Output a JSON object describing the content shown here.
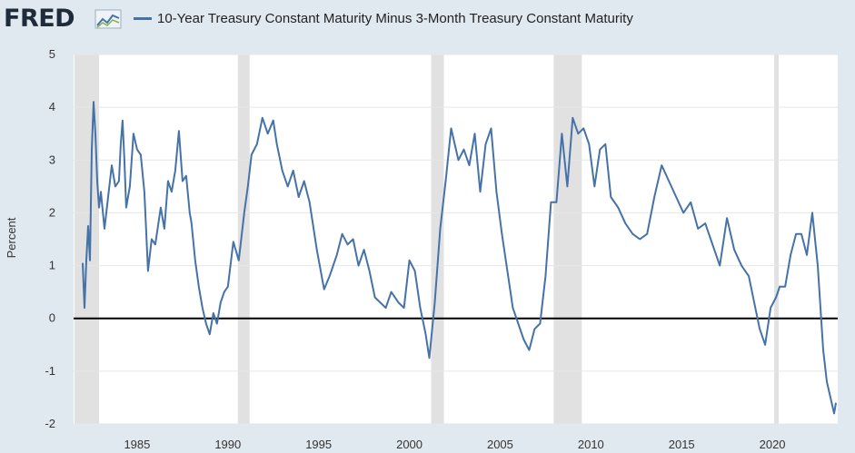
{
  "logo": {
    "text": "FRED"
  },
  "colors": {
    "background": "#e1e9f0",
    "plot_bg": "#ffffff",
    "recession": "#e1e1e1",
    "line": "#4572a7",
    "zero_line": "#000000"
  },
  "chart_data": {
    "type": "line",
    "series": [
      {
        "name": "10-Year Treasury Constant Maturity Minus 3-Month Treasury Constant Maturity",
        "x": [
          1982.0,
          1982.1,
          1982.2,
          1982.3,
          1982.4,
          1982.5,
          1982.6,
          1982.7,
          1982.8,
          1982.9,
          1983.0,
          1983.2,
          1983.4,
          1983.6,
          1983.8,
          1984.0,
          1984.1,
          1984.2,
          1984.3,
          1984.4,
          1984.6,
          1984.8,
          1985.0,
          1985.2,
          1985.4,
          1985.6,
          1985.8,
          1986.0,
          1986.3,
          1986.5,
          1986.7,
          1986.9,
          1987.1,
          1987.3,
          1987.5,
          1987.7,
          1987.9,
          1988.0,
          1988.2,
          1988.4,
          1988.6,
          1988.8,
          1989.0,
          1989.2,
          1989.4,
          1989.6,
          1989.8,
          1990.0,
          1990.3,
          1990.6,
          1990.9,
          1991.1,
          1991.3,
          1991.6,
          1991.9,
          1992.2,
          1992.5,
          1992.7,
          1993.0,
          1993.3,
          1993.6,
          1993.9,
          1994.2,
          1994.5,
          1994.9,
          1995.3,
          1995.6,
          1996.0,
          1996.3,
          1996.6,
          1996.9,
          1997.2,
          1997.5,
          1997.8,
          1998.1,
          1998.4,
          1998.7,
          1999.0,
          1999.4,
          1999.7,
          2000.0,
          2000.3,
          2000.6,
          2000.9,
          2001.1,
          2001.4,
          2001.7,
          2002.0,
          2002.3,
          2002.7,
          2003.0,
          2003.3,
          2003.6,
          2003.9,
          2004.2,
          2004.5,
          2004.8,
          2005.1,
          2005.4,
          2005.7,
          2006.0,
          2006.3,
          2006.6,
          2006.9,
          2007.2,
          2007.5,
          2007.8,
          2008.1,
          2008.4,
          2008.7,
          2009.0,
          2009.3,
          2009.6,
          2009.9,
          2010.2,
          2010.5,
          2010.8,
          2011.1,
          2011.5,
          2011.9,
          2012.3,
          2012.7,
          2013.1,
          2013.5,
          2013.9,
          2014.3,
          2014.7,
          2015.1,
          2015.5,
          2015.9,
          2016.3,
          2016.7,
          2017.1,
          2017.5,
          2017.9,
          2018.3,
          2018.7,
          2019.0,
          2019.3,
          2019.6,
          2019.9,
          2020.2,
          2020.4,
          2020.7,
          2021.0,
          2021.3,
          2021.6,
          2021.9,
          2022.2,
          2022.5,
          2022.8,
          2023.0,
          2023.2,
          2023.4,
          2023.5
        ],
        "y": [
          1.05,
          0.2,
          1.1,
          1.75,
          1.1,
          3.2,
          4.1,
          3.5,
          2.6,
          2.1,
          2.4,
          1.7,
          2.3,
          2.9,
          2.5,
          2.6,
          3.3,
          3.75,
          3.0,
          2.1,
          2.5,
          3.5,
          3.2,
          3.1,
          2.4,
          0.9,
          1.5,
          1.4,
          2.1,
          1.7,
          2.6,
          2.4,
          2.8,
          3.55,
          2.6,
          2.7,
          2.0,
          1.8,
          1.1,
          0.6,
          0.2,
          -0.1,
          -0.3,
          0.1,
          -0.1,
          0.3,
          0.5,
          0.6,
          1.45,
          1.1,
          2.0,
          2.5,
          3.1,
          3.3,
          3.8,
          3.5,
          3.75,
          3.3,
          2.8,
          2.5,
          2.8,
          2.3,
          2.6,
          2.2,
          1.3,
          0.55,
          0.8,
          1.2,
          1.6,
          1.4,
          1.5,
          1.0,
          1.3,
          0.9,
          0.4,
          0.3,
          0.2,
          0.5,
          0.3,
          0.2,
          1.1,
          0.9,
          0.2,
          -0.3,
          -0.75,
          0.3,
          1.7,
          2.6,
          3.6,
          3.0,
          3.2,
          2.9,
          3.5,
          2.4,
          3.3,
          3.6,
          2.4,
          1.6,
          0.9,
          0.2,
          -0.1,
          -0.4,
          -0.6,
          -0.2,
          -0.1,
          0.8,
          2.2,
          2.2,
          3.5,
          2.5,
          3.8,
          3.5,
          3.6,
          3.3,
          2.5,
          3.2,
          3.3,
          2.3,
          2.1,
          1.8,
          1.6,
          1.5,
          1.6,
          2.3,
          2.9,
          2.6,
          2.3,
          2.0,
          2.2,
          1.7,
          1.8,
          1.4,
          1.0,
          1.9,
          1.3,
          1.0,
          0.8,
          0.3,
          -0.2,
          -0.5,
          0.2,
          0.4,
          0.6,
          0.6,
          1.2,
          1.6,
          1.6,
          1.2,
          2.0,
          1.0,
          -0.6,
          -1.2,
          -1.5,
          -1.8,
          -1.6
        ]
      }
    ],
    "recessions": [
      [
        1981.55,
        1982.9
      ],
      [
        1990.55,
        1991.2
      ],
      [
        2001.2,
        2001.9
      ],
      [
        2007.95,
        2009.5
      ],
      [
        2020.1,
        2020.35
      ]
    ],
    "x_ticks": [
      "1985",
      "1990",
      "1995",
      "2000",
      "2005",
      "2010",
      "2015",
      "2020"
    ],
    "y_ticks": [
      "5",
      "4",
      "3",
      "2",
      "1",
      "0",
      "-1",
      "-2"
    ],
    "xlim": [
      1981.5,
      2023.6
    ],
    "ylim": [
      -2,
      5
    ],
    "ylabel": "Percent",
    "grid": "horizontal"
  }
}
